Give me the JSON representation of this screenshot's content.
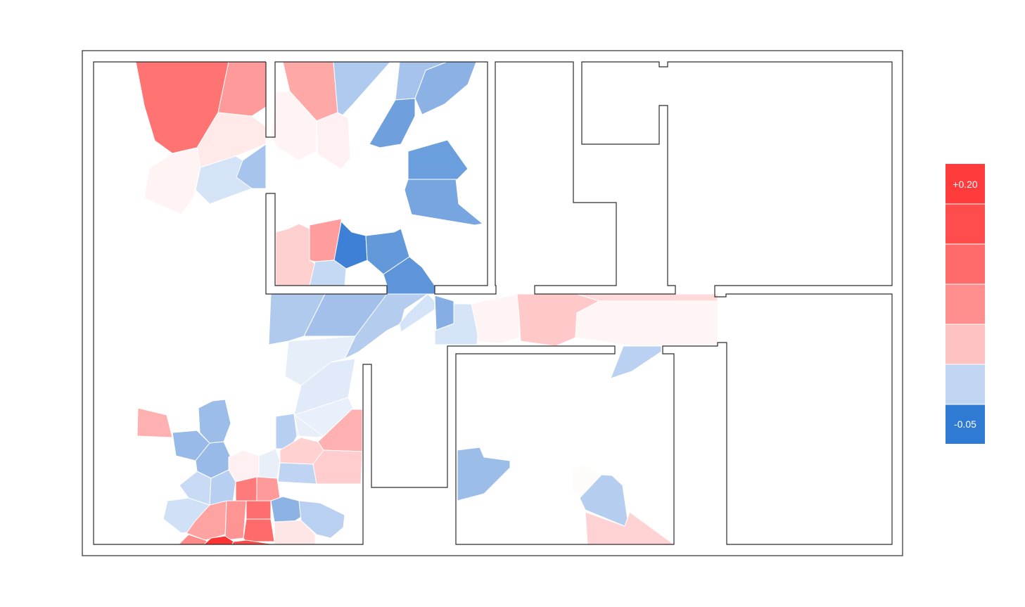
{
  "legend": {
    "max_label": "+0.20",
    "min_label": "-0.05",
    "swatches": [
      "#ff3b3b",
      "#ff4d4d",
      "#ff6b6b",
      "#ff8f8f",
      "#ffc2c2",
      "#c0d5f2",
      "#2f7bd3"
    ]
  },
  "palette": {
    "red_strong": "#ff5a5a",
    "red_mid": "#ff8f8f",
    "red_light": "#ffcccc",
    "neutral_warm": "#fff3f3",
    "blue_light": "#c6d9f3",
    "blue_mid": "#8fb3e6",
    "blue_strong": "#3d7fd4",
    "wall_color": "#2b2b2b"
  }
}
